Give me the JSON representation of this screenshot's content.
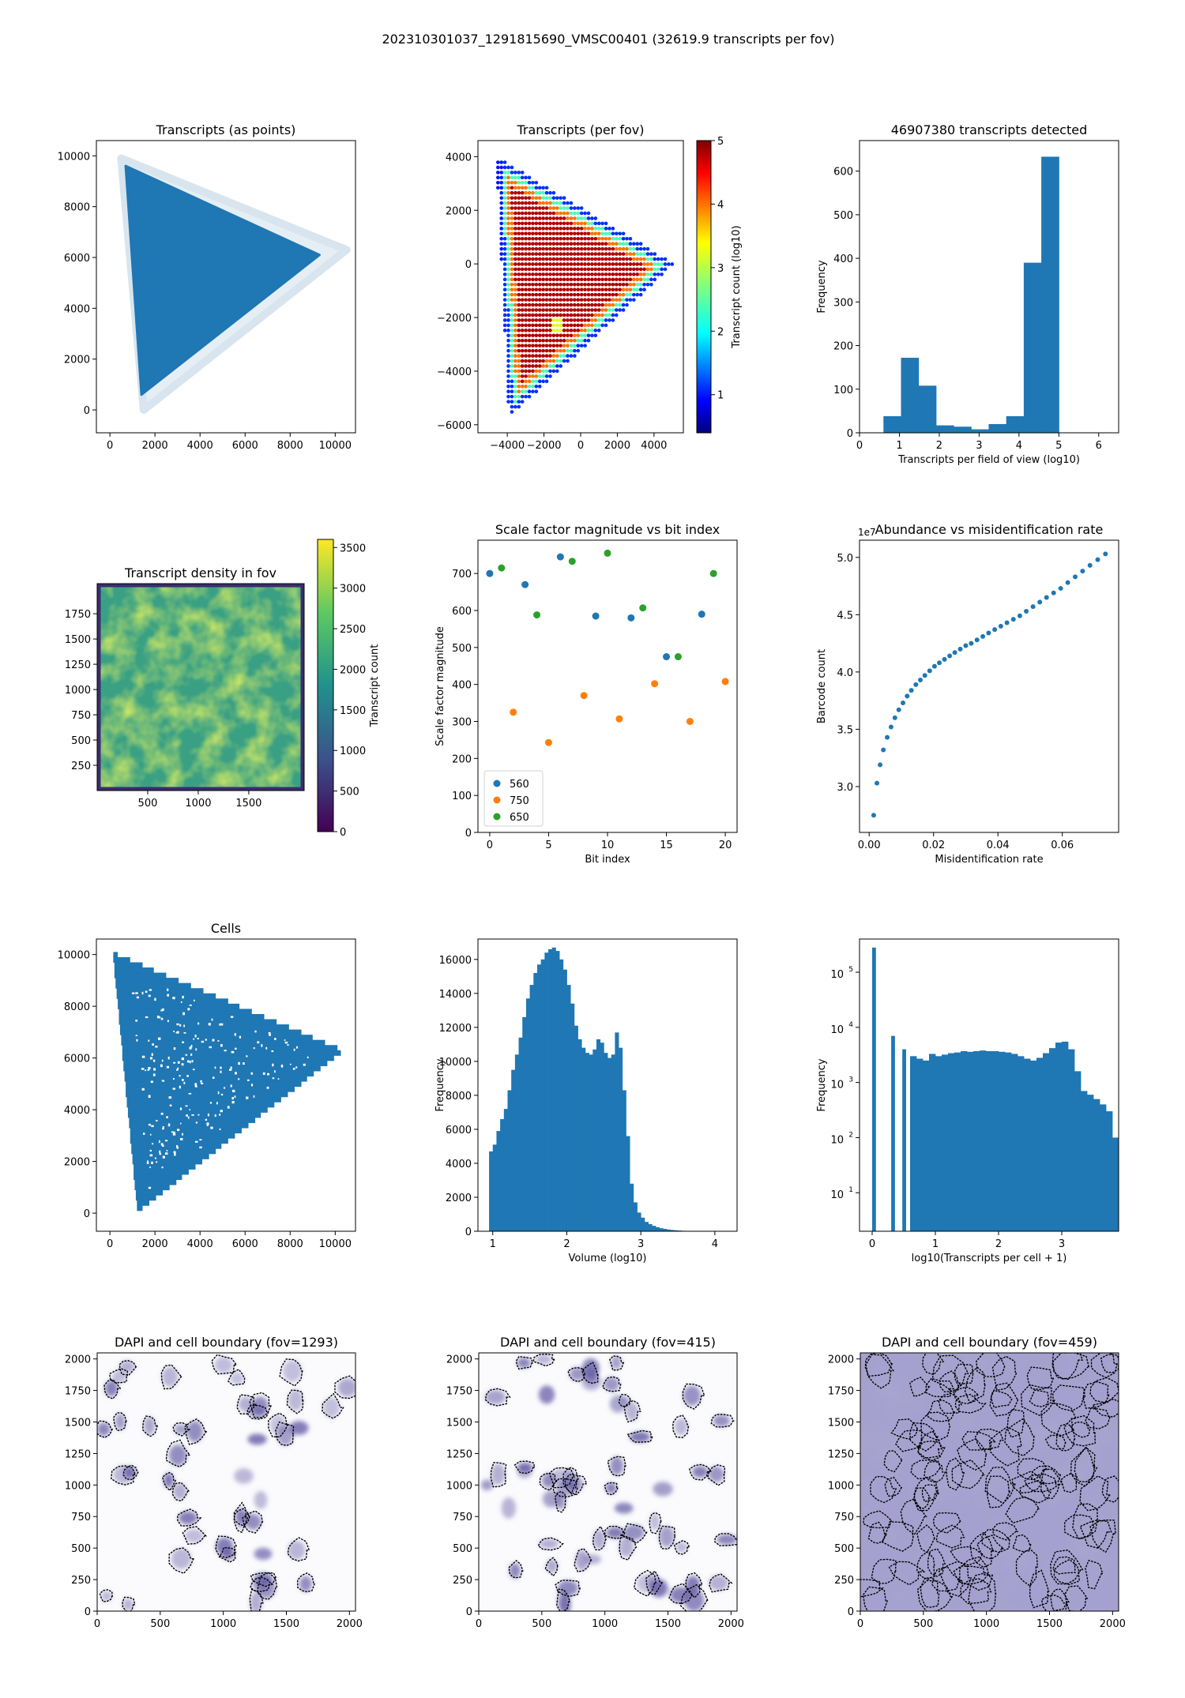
{
  "figure": {
    "suptitle": "202310301037_1291815690_VMSC00401 (32619.9 transcripts per fov)"
  },
  "colors": {
    "blue": "#1f77b4",
    "orange": "#ff7f0e",
    "green": "#2ca02c"
  },
  "chart_data": [
    {
      "id": "tx_points",
      "type": "scatter",
      "title": "Transcripts (as points)",
      "xlabel": "",
      "ylabel": "",
      "xlim": [
        -600,
        10900
      ],
      "ylim": [
        -900,
        10600
      ],
      "xticks": [
        0,
        2000,
        4000,
        6000,
        8000,
        10000
      ],
      "yticks": [
        0,
        2000,
        4000,
        6000,
        8000,
        10000
      ],
      "shape": [
        [
          700,
          9600
        ],
        [
          9300,
          6100
        ],
        [
          1400,
          600
        ]
      ],
      "halo": [
        [
          500,
          9900
        ],
        [
          10500,
          6300
        ],
        [
          1500,
          0
        ]
      ]
    },
    {
      "id": "tx_fov",
      "type": "scatter",
      "title": "Transcripts (per fov)",
      "xlabel": "",
      "ylabel": "",
      "xlim": [
        -5600,
        5600
      ],
      "ylim": [
        -6300,
        4600
      ],
      "xticks": [
        -4000,
        -2000,
        0,
        2000,
        4000
      ],
      "yticks": [
        -6000,
        -4000,
        -2000,
        0,
        2000,
        4000
      ],
      "xticklabels": [
        "−4000",
        "−2000",
        "0",
        "2000",
        "4000"
      ],
      "yticklabels": [
        "−6000",
        "−4000",
        "−2000",
        "0",
        "2000",
        "4000"
      ],
      "colorbar": {
        "label": "Transcript count (log10)",
        "range": [
          0.4,
          5
        ],
        "ticks": [
          1,
          2,
          3,
          4,
          5
        ],
        "colormap": "jet"
      },
      "shape": [
        [
          -4600,
          4000
        ],
        [
          5100,
          0
        ],
        [
          -3900,
          -5700
        ]
      ]
    },
    {
      "id": "fov_hist",
      "type": "bar",
      "title": "46907380 transcripts detected",
      "xlabel": "Transcripts per field of view (log10)",
      "ylabel": "Frequency",
      "xlim": [
        0,
        6.5
      ],
      "ylim": [
        0,
        670
      ],
      "xticks": [
        0,
        1,
        2,
        3,
        4,
        5,
        6
      ],
      "yticks": [
        0,
        100,
        200,
        300,
        400,
        500,
        600
      ],
      "bin_edges": [
        0.6,
        1.04,
        1.48,
        1.92,
        2.36,
        2.8,
        3.24,
        3.68,
        4.12,
        4.56,
        5.0
      ],
      "values": [
        38,
        172,
        108,
        17,
        14,
        8,
        20,
        38,
        390,
        633
      ]
    },
    {
      "id": "density",
      "type": "heatmap",
      "title": "Transcript density in fov",
      "xlabel": "",
      "ylabel": "",
      "xlim": [
        0,
        2048
      ],
      "ylim": [
        0,
        2048
      ],
      "xticks": [
        500,
        1000,
        1500
      ],
      "yticks": [
        250,
        500,
        750,
        1000,
        1250,
        1500,
        1750
      ],
      "colorbar": {
        "label": "Transcript count",
        "range": [
          0,
          3600
        ],
        "ticks": [
          0,
          500,
          1000,
          1500,
          2000,
          2500,
          3000,
          3500
        ],
        "colormap": "viridis"
      }
    },
    {
      "id": "scale_factor",
      "type": "scatter",
      "title": "Scale factor magnitude vs bit index",
      "xlabel": "Bit index",
      "ylabel": "Scale factor magnitude",
      "xlim": [
        -1,
        21
      ],
      "ylim": [
        0,
        790
      ],
      "xticks": [
        0,
        5,
        10,
        15,
        20
      ],
      "yticks": [
        0,
        100,
        200,
        300,
        400,
        500,
        600,
        700
      ],
      "legend": "lower-left",
      "series": [
        {
          "name": "560",
          "x": [
            0,
            3,
            6,
            9,
            12,
            15,
            18
          ],
          "y": [
            700,
            670,
            745,
            585,
            580,
            475,
            590
          ]
        },
        {
          "name": "750",
          "x": [
            2,
            5,
            8,
            11,
            14,
            17,
            20
          ],
          "y": [
            325,
            243,
            370,
            307,
            402,
            300,
            408
          ]
        },
        {
          "name": "650",
          "x": [
            1,
            4,
            7,
            10,
            13,
            16,
            19
          ],
          "y": [
            715,
            588,
            733,
            755,
            607,
            475,
            700
          ]
        }
      ]
    },
    {
      "id": "abundance",
      "type": "scatter",
      "title": "Abundance vs misidentification rate",
      "xlabel": "Misidentification rate",
      "ylabel": "Barcode count",
      "offset_text": "1e7",
      "xlim": [
        -0.003,
        0.0775
      ],
      "ylim": [
        2.6,
        5.15
      ],
      "xticks": [
        0.0,
        0.02,
        0.04,
        0.06
      ],
      "xticklabels": [
        "0.00",
        "0.02",
        "0.04",
        "0.06"
      ],
      "yticks": [
        3.0,
        3.5,
        4.0,
        4.5,
        5.0
      ],
      "yticklabels": [
        "3.0",
        "3.5",
        "4.0",
        "4.5",
        "5.0"
      ],
      "x": [
        0.0014,
        0.0024,
        0.0034,
        0.0044,
        0.0056,
        0.0068,
        0.008,
        0.0092,
        0.0105,
        0.0118,
        0.0131,
        0.0145,
        0.0159,
        0.0173,
        0.0188,
        0.0203,
        0.0218,
        0.0234,
        0.025,
        0.0266,
        0.0283,
        0.03,
        0.0317,
        0.0335,
        0.0353,
        0.0371,
        0.039,
        0.0409,
        0.0428,
        0.0448,
        0.0468,
        0.0488,
        0.0509,
        0.053,
        0.0551,
        0.0573,
        0.0595,
        0.0617,
        0.064,
        0.0663,
        0.0686,
        0.071,
        0.0734
      ],
      "y": [
        2.75,
        3.03,
        3.19,
        3.32,
        3.43,
        3.52,
        3.6,
        3.67,
        3.73,
        3.79,
        3.84,
        3.89,
        3.93,
        3.97,
        4.01,
        4.05,
        4.08,
        4.11,
        4.14,
        4.17,
        4.2,
        4.23,
        4.25,
        4.28,
        4.31,
        4.34,
        4.37,
        4.4,
        4.43,
        4.46,
        4.49,
        4.53,
        4.57,
        4.61,
        4.65,
        4.69,
        4.73,
        4.78,
        4.83,
        4.88,
        4.93,
        4.98,
        5.03
      ]
    },
    {
      "id": "cells",
      "type": "scatter",
      "title": "Cells",
      "xlabel": "",
      "ylabel": "",
      "xlim": [
        -600,
        10900
      ],
      "ylim": [
        -700,
        10600
      ],
      "xticks": [
        0,
        2000,
        4000,
        6000,
        8000,
        10000
      ],
      "yticks": [
        0,
        2000,
        4000,
        6000,
        8000,
        10000
      ],
      "shape": [
        [
          100,
          10000
        ],
        [
          10400,
          6200
        ],
        [
          1200,
          -100
        ]
      ]
    },
    {
      "id": "volume_hist",
      "type": "bar",
      "title": "",
      "xlabel": "Volume (log10)",
      "ylabel": "Frequency",
      "xlim": [
        0.8,
        4.3
      ],
      "ylim": [
        0,
        17200
      ],
      "xticks": [
        1,
        2,
        3,
        4
      ],
      "yticks": [
        0,
        2000,
        4000,
        6000,
        8000,
        10000,
        12000,
        14000,
        16000
      ],
      "bin_start": 0.95,
      "bin_width": 0.05,
      "values": [
        4700,
        5100,
        5900,
        6600,
        7200,
        8300,
        9500,
        10400,
        11400,
        12600,
        13700,
        14500,
        15200,
        15700,
        16000,
        16400,
        16600,
        16700,
        16500,
        16000,
        15400,
        14500,
        13400,
        12100,
        11300,
        10800,
        10500,
        10400,
        10700,
        11300,
        11100,
        10500,
        10200,
        10400,
        11700,
        10800,
        8300,
        5600,
        2800,
        1700,
        1100,
        800,
        550,
        420,
        320,
        240,
        180,
        140,
        100,
        75,
        55,
        40,
        28,
        20,
        15,
        10
      ]
    },
    {
      "id": "tx_cell_hist",
      "type": "bar",
      "title": "",
      "xlabel": "log10(Transcripts per cell + 1)",
      "ylabel": "Frequency",
      "yscale": "log",
      "xlim": [
        -0.2,
        3.9
      ],
      "ylim": [
        2,
        400000
      ],
      "xticks": [
        0,
        1,
        2,
        3
      ],
      "yticks": [
        10,
        100,
        1000,
        10000,
        100000
      ],
      "yticklabels": [
        "10",
        "10",
        "10",
        "10",
        "10"
      ],
      "yticklabels_exp": [
        "1",
        "2",
        "3",
        "4",
        "5"
      ],
      "bars": [
        {
          "x": 0,
          "w": 0.06,
          "v": 280000
        },
        {
          "x": 0.301,
          "w": 0.06,
          "v": 7000
        },
        {
          "x": 0.477,
          "w": 0.06,
          "v": 4000
        }
      ],
      "bin_start": 0.6,
      "bin_width": 0.1,
      "values": [
        3000,
        2700,
        2500,
        3300,
        3000,
        3200,
        3400,
        3500,
        3700,
        3600,
        3700,
        3800,
        3700,
        3700,
        3600,
        3500,
        3300,
        3000,
        2700,
        2500,
        2800,
        3400,
        4200,
        5300,
        5500,
        4000,
        1600,
        700,
        600,
        500,
        400,
        300,
        100
      ]
    },
    {
      "id": "dapi_1293",
      "type": "scatter",
      "title": "DAPI and cell boundary (fov=1293)",
      "xlabel": "",
      "ylabel": "",
      "xlim": [
        0,
        2048
      ],
      "ylim": [
        0,
        2048
      ],
      "xticks": [
        0,
        500,
        1000,
        1500,
        2000
      ],
      "yticks": [
        0,
        250,
        500,
        750,
        1000,
        1250,
        1500,
        1750,
        2000
      ]
    },
    {
      "id": "dapi_415",
      "type": "scatter",
      "title": "DAPI and cell boundary (fov=415)",
      "xlabel": "",
      "ylabel": "",
      "xlim": [
        0,
        2048
      ],
      "ylim": [
        0,
        2048
      ],
      "xticks": [
        0,
        500,
        1000,
        1500,
        2000
      ],
      "yticks": [
        0,
        250,
        500,
        750,
        1000,
        1250,
        1500,
        1750,
        2000
      ]
    },
    {
      "id": "dapi_459",
      "type": "scatter",
      "title": "DAPI and cell boundary (fov=459)",
      "xlabel": "",
      "ylabel": "",
      "xlim": [
        0,
        2048
      ],
      "ylim": [
        0,
        2048
      ],
      "xticks": [
        0,
        500,
        1000,
        1500,
        2000
      ],
      "yticks": [
        0,
        250,
        500,
        750,
        1000,
        1250,
        1500,
        1750,
        2000
      ]
    }
  ]
}
